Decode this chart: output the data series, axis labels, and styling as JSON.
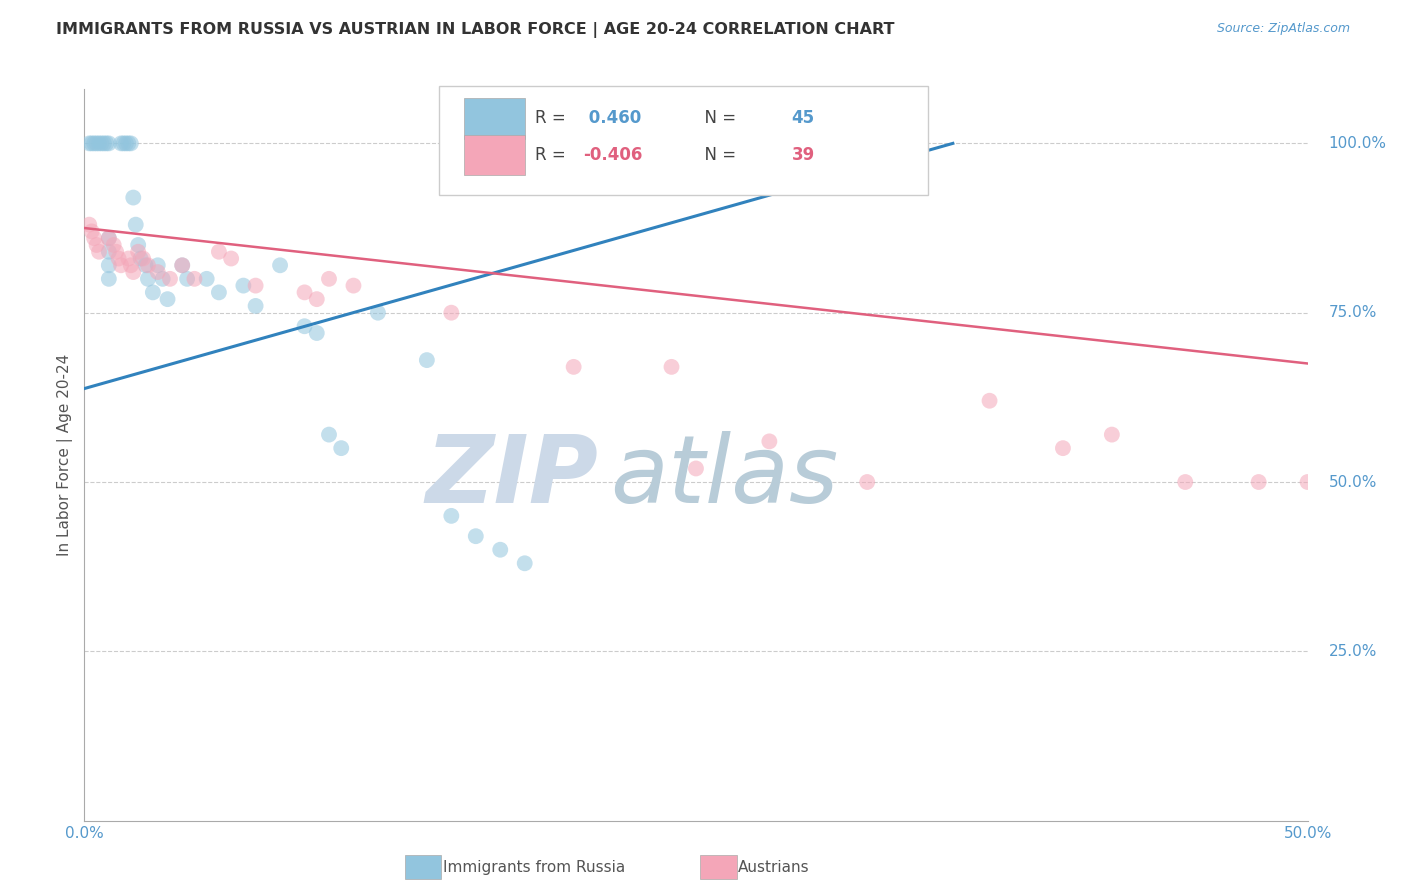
{
  "title": "IMMIGRANTS FROM RUSSIA VS AUSTRIAN IN LABOR FORCE | AGE 20-24 CORRELATION CHART",
  "source": "Source: ZipAtlas.com",
  "ylabel": "In Labor Force | Age 20-24",
  "xlim": [
    0.0,
    0.5
  ],
  "ylim": [
    0.0,
    1.08
  ],
  "legend_blue_r": "0.460",
  "legend_blue_n": "45",
  "legend_pink_r": "-0.406",
  "legend_pink_n": "39",
  "blue_color": "#92c5de",
  "blue_line_color": "#3182bd",
  "pink_color": "#f4a6b8",
  "pink_line_color": "#e0607e",
  "watermark_zip": "ZIP",
  "watermark_atlas": "atlas",
  "watermark_color": "#ccd9e8",
  "title_color": "#333333",
  "axis_label_color": "#555555",
  "tick_color": "#5599cc",
  "grid_color": "#cccccc",
  "blue_scatter_x": [
    0.002,
    0.003,
    0.004,
    0.005,
    0.006,
    0.007,
    0.008,
    0.009,
    0.01,
    0.01,
    0.01,
    0.01,
    0.01,
    0.015,
    0.016,
    0.017,
    0.018,
    0.019,
    0.02,
    0.021,
    0.022,
    0.023,
    0.025,
    0.026,
    0.028,
    0.03,
    0.032,
    0.034,
    0.04,
    0.042,
    0.05,
    0.055,
    0.065,
    0.07,
    0.08,
    0.09,
    0.095,
    0.1,
    0.105,
    0.12,
    0.14,
    0.15,
    0.16,
    0.17,
    0.18
  ],
  "blue_scatter_y": [
    1.0,
    1.0,
    1.0,
    1.0,
    1.0,
    1.0,
    1.0,
    1.0,
    1.0,
    0.86,
    0.84,
    0.82,
    0.8,
    1.0,
    1.0,
    1.0,
    1.0,
    1.0,
    0.92,
    0.88,
    0.85,
    0.83,
    0.82,
    0.8,
    0.78,
    0.82,
    0.8,
    0.77,
    0.82,
    0.8,
    0.8,
    0.78,
    0.79,
    0.76,
    0.82,
    0.73,
    0.72,
    0.57,
    0.55,
    0.75,
    0.68,
    0.45,
    0.42,
    0.4,
    0.38
  ],
  "pink_scatter_x": [
    0.002,
    0.003,
    0.004,
    0.005,
    0.006,
    0.01,
    0.012,
    0.013,
    0.014,
    0.015,
    0.018,
    0.019,
    0.02,
    0.022,
    0.024,
    0.026,
    0.03,
    0.035,
    0.04,
    0.045,
    0.055,
    0.06,
    0.07,
    0.09,
    0.095,
    0.1,
    0.11,
    0.15,
    0.2,
    0.24,
    0.25,
    0.28,
    0.32,
    0.37,
    0.4,
    0.42,
    0.45,
    0.48,
    0.5
  ],
  "pink_scatter_y": [
    0.88,
    0.87,
    0.86,
    0.85,
    0.84,
    0.86,
    0.85,
    0.84,
    0.83,
    0.82,
    0.83,
    0.82,
    0.81,
    0.84,
    0.83,
    0.82,
    0.81,
    0.8,
    0.82,
    0.8,
    0.84,
    0.83,
    0.79,
    0.78,
    0.77,
    0.8,
    0.79,
    0.75,
    0.67,
    0.67,
    0.52,
    0.56,
    0.5,
    0.62,
    0.55,
    0.57,
    0.5,
    0.5,
    0.5
  ],
  "blue_trend_x": [
    0.0,
    0.355
  ],
  "blue_trend_y": [
    0.638,
    1.0
  ],
  "pink_trend_x": [
    0.0,
    0.5
  ],
  "pink_trend_y": [
    0.875,
    0.675
  ],
  "ytick_positions": [
    0.25,
    0.5,
    0.75,
    1.0
  ],
  "ytick_labels": [
    "25.0%",
    "50.0%",
    "75.0%",
    "100.0%"
  ],
  "xtick_positions": [
    0.0,
    0.1,
    0.2,
    0.3,
    0.4,
    0.5
  ],
  "xtick_labels": [
    "0.0%",
    "",
    "",
    "",
    "",
    "50.0%"
  ]
}
